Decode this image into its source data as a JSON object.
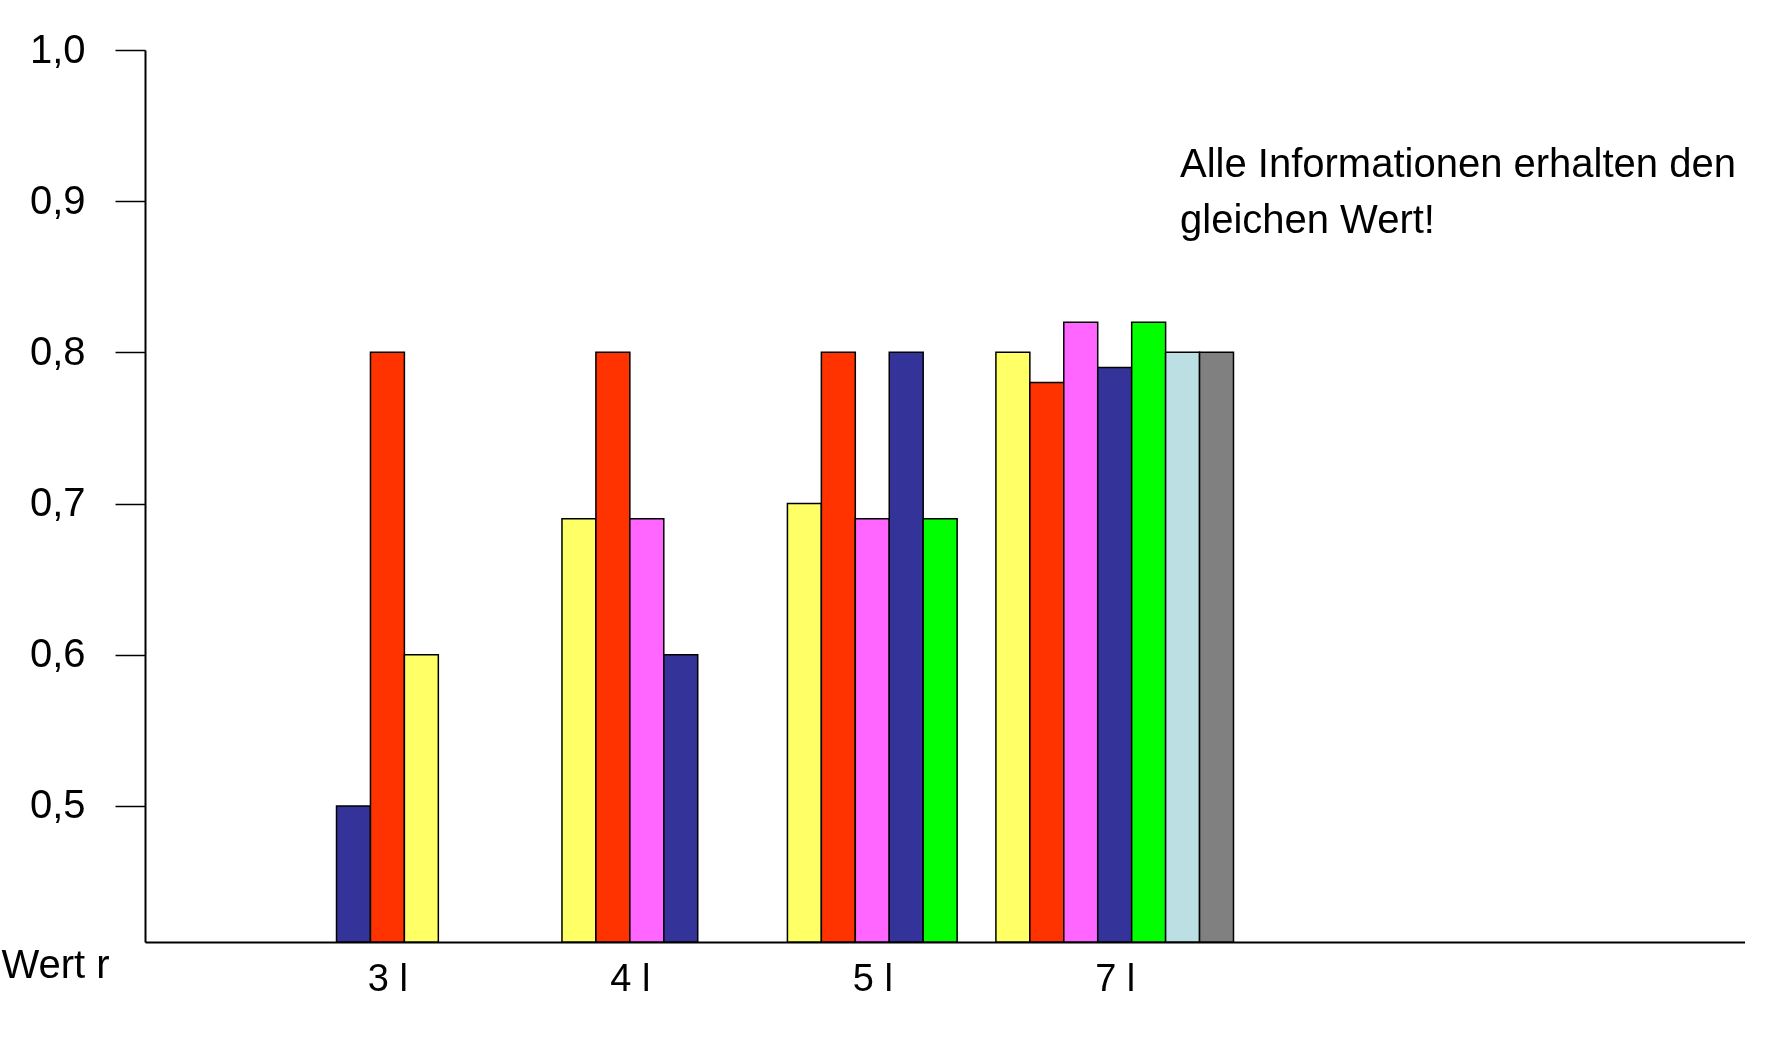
{
  "chart_data": {
    "type": "bar",
    "ylabel": "Wert r",
    "annotations": [
      "Alle Informationen erhalten den gleichen Wert!"
    ],
    "categories": [
      "3 l",
      "4 l",
      "5 l",
      "7 l"
    ],
    "ylim": [
      0.41,
      1.0
    ],
    "yticks": [
      {
        "value": 0.5,
        "label": "0,5"
      },
      {
        "value": 0.6,
        "label": "0,6"
      },
      {
        "value": 0.7,
        "label": "0,7"
      },
      {
        "value": 0.8,
        "label": "0,8"
      },
      {
        "value": 0.9,
        "label": "0,9"
      },
      {
        "value": 1.0,
        "label": "1,0"
      }
    ],
    "series": [
      {
        "values": [
          0.5,
          0.69,
          0.7,
          0.8
        ],
        "colors": [
          "#333399",
          "#ffff66",
          "#ffff66",
          "#ffff66"
        ]
      },
      {
        "values": [
          0.8,
          0.8,
          0.8,
          0.78
        ],
        "colors": [
          "#ff3300",
          "#ff3300",
          "#ff3300",
          "#ff3300"
        ]
      },
      {
        "values": [
          0.6,
          0.69,
          0.69,
          0.82
        ],
        "colors": [
          "#ffff66",
          "#ff66ff",
          "#ff66ff",
          "#ff66ff"
        ]
      },
      {
        "values": [
          null,
          0.6,
          0.8,
          0.79
        ],
        "colors": [
          null,
          "#333399",
          "#333399",
          "#333399"
        ]
      },
      {
        "values": [
          null,
          null,
          0.69,
          0.82
        ],
        "colors": [
          null,
          null,
          "#00ff00",
          "#00ff00"
        ]
      },
      {
        "values": [
          null,
          null,
          null,
          0.8
        ],
        "colors": [
          null,
          null,
          null,
          "#bbdfe3"
        ]
      },
      {
        "values": [
          null,
          null,
          null,
          0.8
        ],
        "colors": [
          null,
          null,
          null,
          "#808080"
        ]
      }
    ]
  }
}
